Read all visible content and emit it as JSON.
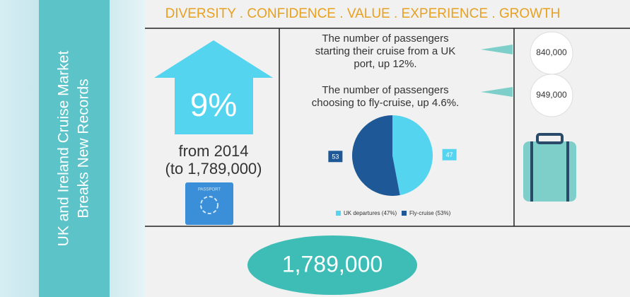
{
  "sidebar": {
    "title": [
      "UK and Ireland Cruise Market",
      "Breaks New Records"
    ]
  },
  "header": {
    "title": "DIVERSITY . CONFIDENCE . VALUE . EXPERIENCE . GROWTH"
  },
  "growth": {
    "percent": "9%",
    "lines": [
      "from 2014",
      "(to 1,789,000)"
    ]
  },
  "passport": {
    "label": "PASSPORT"
  },
  "stats": [
    {
      "text": [
        "The number of passengers",
        "starting their cruise from a UK",
        "port, up 12%."
      ],
      "value": "840,000"
    },
    {
      "text": [
        "The number of passengers",
        "choosing to fly-cruise, up 4.6%."
      ],
      "value": "949,000"
    }
  ],
  "chart_data": {
    "type": "pie",
    "categories": [
      "UK departures (47%)",
      "Fly-cruise (53%)"
    ],
    "values": [
      47,
      53
    ],
    "colors": [
      "#55d4f0",
      "#1f5896"
    ]
  },
  "total": {
    "value": "1,789,000"
  }
}
